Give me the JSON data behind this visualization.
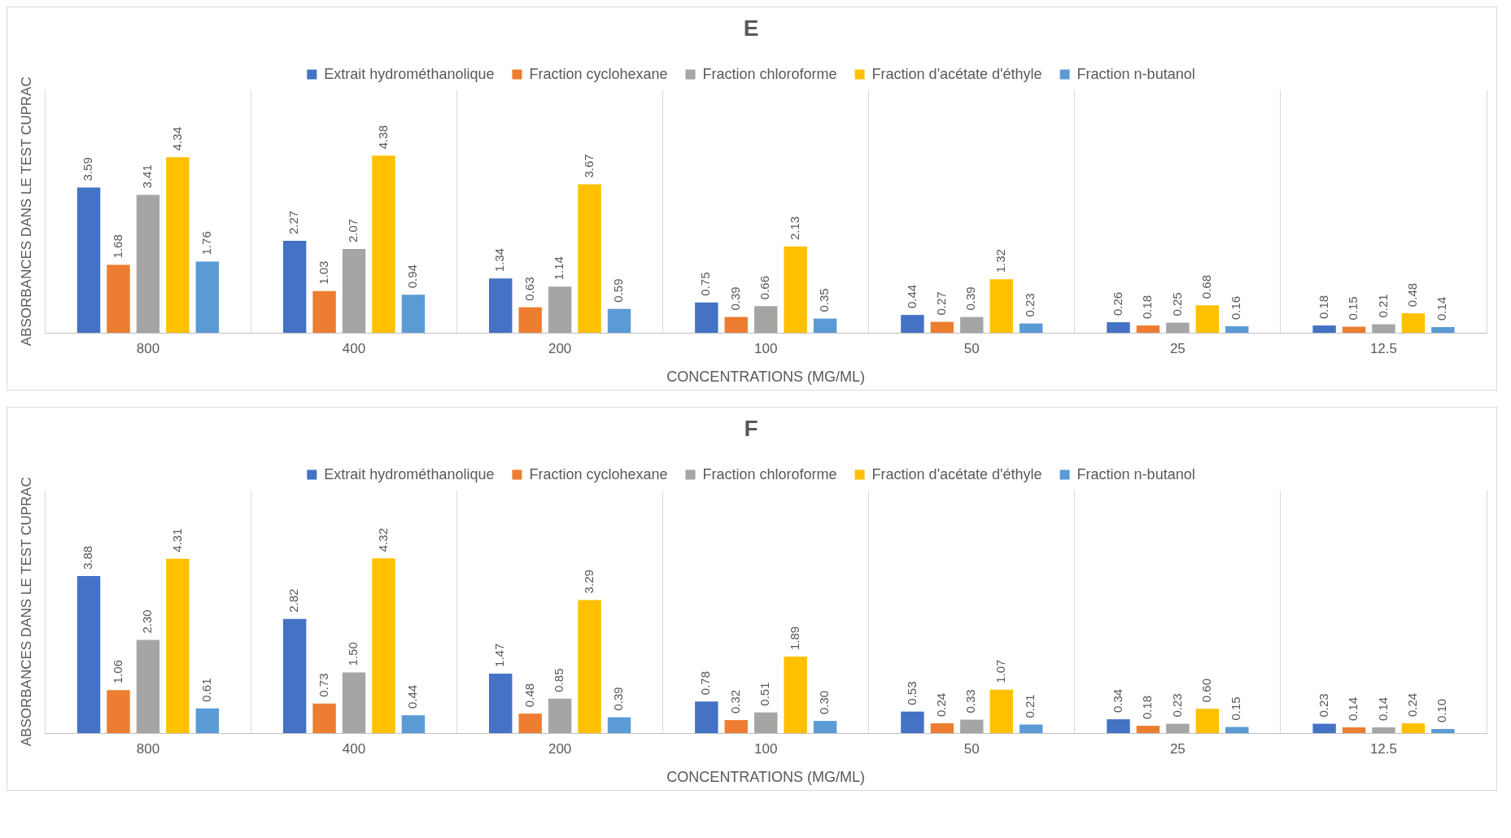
{
  "chart_data": [
    {
      "type": "bar",
      "title": "E",
      "xlabel": "CONCENTRATIONS (MG/ML)",
      "ylabel": "ABSORBANCES DANS LE TEST CUPRAC",
      "categories": [
        "800",
        "400",
        "200",
        "100",
        "50",
        "25",
        "12.5"
      ],
      "data_labels": true,
      "legend": "top",
      "grid": "x",
      "series": [
        {
          "name": "Extrait hydrométhanolique",
          "color": "#4472c4",
          "values": [
            3.59,
            2.27,
            1.34,
            0.75,
            0.44,
            0.26,
            0.18
          ]
        },
        {
          "name": "Fraction cyclohexane",
          "color": "#ed7d31",
          "values": [
            1.68,
            1.03,
            0.63,
            0.39,
            0.27,
            0.18,
            0.15
          ]
        },
        {
          "name": "Fraction chloroforme",
          "color": "#a5a5a5",
          "values": [
            3.41,
            2.07,
            1.14,
            0.66,
            0.39,
            0.25,
            0.21
          ]
        },
        {
          "name": "Fraction d'acétate d'éthyle",
          "color": "#ffc000",
          "values": [
            4.34,
            4.38,
            3.67,
            2.13,
            1.32,
            0.68,
            0.48
          ]
        },
        {
          "name": "Fraction n-butanol",
          "color": "#5b9bd5",
          "values": [
            1.76,
            0.94,
            0.59,
            0.35,
            0.23,
            0.16,
            0.14
          ]
        }
      ]
    },
    {
      "type": "bar",
      "title": "F",
      "xlabel": "CONCENTRATIONS (MG/ML)",
      "ylabel": "ABSORBANCES DANS LE TEST CUPRAC",
      "categories": [
        "800",
        "400",
        "200",
        "100",
        "50",
        "25",
        "12.5"
      ],
      "legend": "top",
      "grid": "x",
      "series": [
        {
          "name": "Extrait hydrométhanolique",
          "color": "#4472c4",
          "values": [
            3.88,
            2.82,
            1.47,
            0.78,
            0.53,
            0.34,
            0.23
          ],
          "value_labels": [
            "3.88",
            "2.82",
            "1.47",
            "0.78",
            "0.53",
            "0.34",
            "0.23"
          ]
        },
        {
          "name": "Fraction cyclohexane",
          "color": "#ed7d31",
          "values": [
            1.06,
            0.73,
            0.48,
            0.32,
            0.24,
            0.18,
            0.14
          ],
          "value_labels": [
            "1.06",
            "0.73",
            "0.48",
            "0.32",
            "0.24",
            "0.18",
            "0.14"
          ]
        },
        {
          "name": "Fraction chloroforme",
          "color": "#a5a5a5",
          "values": [
            2.3,
            1.5,
            0.85,
            0.51,
            0.33,
            0.23,
            0.14
          ],
          "value_labels": [
            "2.30",
            "1.50",
            "0.85",
            "0.51",
            "0.33",
            "0.23",
            "0.14"
          ]
        },
        {
          "name": "Fraction d'acétate d'éthyle",
          "color": "#ffc000",
          "values": [
            4.31,
            4.32,
            3.29,
            1.89,
            1.07,
            0.6,
            0.24
          ],
          "value_labels": [
            "4.31",
            "4.32",
            "3.29",
            "1.89",
            "1.07",
            "0.60",
            "0.24"
          ]
        },
        {
          "name": "Fraction n-butanol",
          "color": "#5b9bd5",
          "values": [
            0.61,
            0.44,
            0.39,
            0.3,
            0.21,
            0.15,
            0.1
          ],
          "value_labels": [
            "0.61",
            "0.44",
            "0.39",
            "0.30",
            "0.21",
            "0.15",
            "0.10"
          ]
        }
      ]
    }
  ]
}
